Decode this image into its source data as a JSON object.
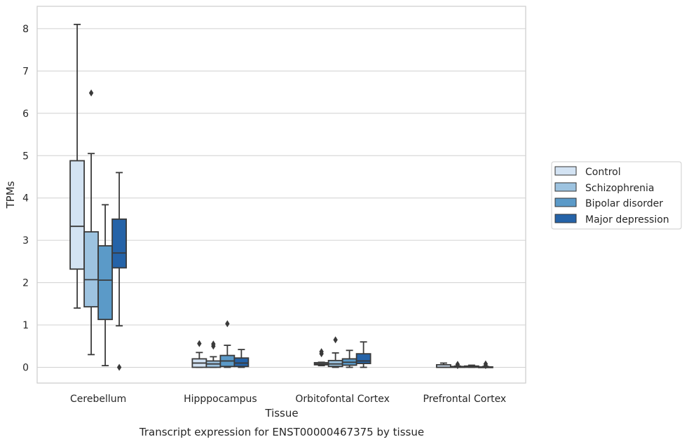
{
  "chart_data": {
    "type": "boxplot",
    "xlabel": "Tissue",
    "ylabel": "TPMs",
    "caption": "Transcript expression for ENST00000467375 by tissue",
    "categories": [
      "Cerebellum",
      "Hipppocampus",
      "Orbitofontal Cortex",
      "Prefrontal Cortex"
    ],
    "ylim": [
      -0.4,
      8.5
    ],
    "yticks": [
      "0",
      "1",
      "2",
      "3",
      "4",
      "5",
      "6",
      "7",
      "8"
    ],
    "grid": "horizontal",
    "legend_position": "right-center",
    "series": [
      {
        "name": "Control",
        "color": "#d3e3f3",
        "boxes": [
          {
            "whislo": 1.4,
            "q1": 2.32,
            "med": 3.33,
            "q3": 4.88,
            "whishi": 8.1,
            "fliers": []
          },
          {
            "whislo": 0.0,
            "q1": 0.0,
            "med": 0.1,
            "q3": 0.2,
            "whishi": 0.35,
            "fliers": [
              0.56
            ]
          },
          {
            "whislo": 0.04,
            "q1": 0.06,
            "med": 0.08,
            "q3": 0.11,
            "whishi": 0.12,
            "fliers": [
              0.32,
              0.37
            ]
          },
          {
            "whislo": 0.0,
            "q1": 0.0,
            "med": 0.0,
            "q3": 0.06,
            "whishi": 0.1,
            "fliers": []
          }
        ]
      },
      {
        "name": "Schizophrenia",
        "color": "#9dc3e0",
        "boxes": [
          {
            "whislo": 0.3,
            "q1": 1.43,
            "med": 2.07,
            "q3": 3.2,
            "whishi": 5.05,
            "fliers": [
              6.48
            ]
          },
          {
            "whislo": 0.0,
            "q1": 0.0,
            "med": 0.08,
            "q3": 0.15,
            "whishi": 0.25,
            "fliers": [
              0.5,
              0.55
            ]
          },
          {
            "whislo": 0.0,
            "q1": 0.02,
            "med": 0.08,
            "q3": 0.16,
            "whishi": 0.34,
            "fliers": [
              0.65
            ]
          },
          {
            "whislo": 0.0,
            "q1": 0.0,
            "med": 0.0,
            "q3": 0.02,
            "whishi": 0.03,
            "fliers": [
              0.04,
              0.07
            ]
          }
        ]
      },
      {
        "name": "Bipolar disorder",
        "color": "#5b9ac8",
        "boxes": [
          {
            "whislo": 0.04,
            "q1": 1.13,
            "med": 2.06,
            "q3": 2.87,
            "whishi": 3.84,
            "fliers": []
          },
          {
            "whislo": 0.0,
            "q1": 0.02,
            "med": 0.15,
            "q3": 0.28,
            "whishi": 0.52,
            "fliers": [
              1.03
            ]
          },
          {
            "whislo": 0.0,
            "q1": 0.05,
            "med": 0.12,
            "q3": 0.2,
            "whishi": 0.4,
            "fliers": []
          },
          {
            "whislo": 0.0,
            "q1": 0.0,
            "med": 0.01,
            "q3": 0.03,
            "whishi": 0.05,
            "fliers": []
          }
        ]
      },
      {
        "name": "Major depression",
        "color": "#2563a8",
        "boxes": [
          {
            "whislo": 0.98,
            "q1": 2.35,
            "med": 2.7,
            "q3": 3.5,
            "whishi": 4.6,
            "fliers": [
              0.0
            ]
          },
          {
            "whislo": 0.0,
            "q1": 0.02,
            "med": 0.1,
            "q3": 0.22,
            "whishi": 0.42,
            "fliers": []
          },
          {
            "whislo": 0.0,
            "q1": 0.09,
            "med": 0.15,
            "q3": 0.32,
            "whishi": 0.6,
            "fliers": []
          },
          {
            "whislo": 0.0,
            "q1": 0.0,
            "med": 0.0,
            "q3": 0.01,
            "whishi": 0.02,
            "fliers": [
              0.04,
              0.08
            ]
          }
        ]
      }
    ]
  }
}
